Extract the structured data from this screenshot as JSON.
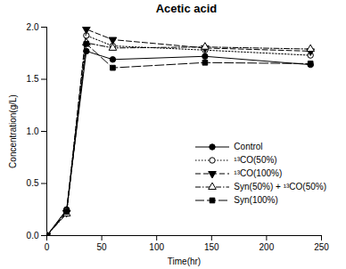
{
  "chart_data": {
    "type": "line",
    "title": "Acetic acid",
    "x_label": "Time(hr)",
    "y_label": "Concentration(g/L)",
    "x": [
      0,
      18,
      36,
      60,
      144,
      240
    ],
    "xlim": [
      0,
      250
    ],
    "xticks": [
      0,
      50,
      100,
      150,
      200,
      250
    ],
    "ylim": [
      0,
      2.0
    ],
    "yticks": [
      {
        "value": 0,
        "label": "0.0"
      },
      {
        "value": 0.5,
        "label": "0.5"
      },
      {
        "value": 1.0,
        "label": "1.0"
      },
      {
        "value": 1.5,
        "label": "1.5"
      },
      {
        "value": 2.0,
        "label": "2.0"
      }
    ],
    "legend": "lower right",
    "series": [
      {
        "name": "Control",
        "color": "#000000",
        "marker": "circle",
        "line_style": "solid",
        "values": [
          0,
          0.25,
          1.77,
          1.69,
          1.72,
          1.64
        ]
      },
      {
        "name": "¹³CO(50%)",
        "color": "#000000",
        "marker": "circle-open",
        "line_style": "dotted",
        "values": [
          0,
          0.24,
          1.92,
          1.82,
          1.78,
          1.73
        ]
      },
      {
        "name": "¹³CO(100%)",
        "color": "#000000",
        "marker": "triangle-down",
        "line_style": "dashed",
        "values": [
          0,
          0.22,
          1.98,
          1.88,
          1.8,
          1.77
        ]
      },
      {
        "name": "Syn(50%) + ¹³CO(50%)",
        "color": "#000000",
        "marker": "triangle-open",
        "line_style": "dashdot",
        "values": [
          0,
          0.21,
          1.85,
          1.8,
          1.81,
          1.79
        ]
      },
      {
        "name": "Syn(100%)",
        "color": "#000000",
        "marker": "square",
        "line_style": "longdash",
        "values": [
          0,
          0.23,
          1.84,
          1.61,
          1.66,
          1.65
        ]
      }
    ]
  }
}
